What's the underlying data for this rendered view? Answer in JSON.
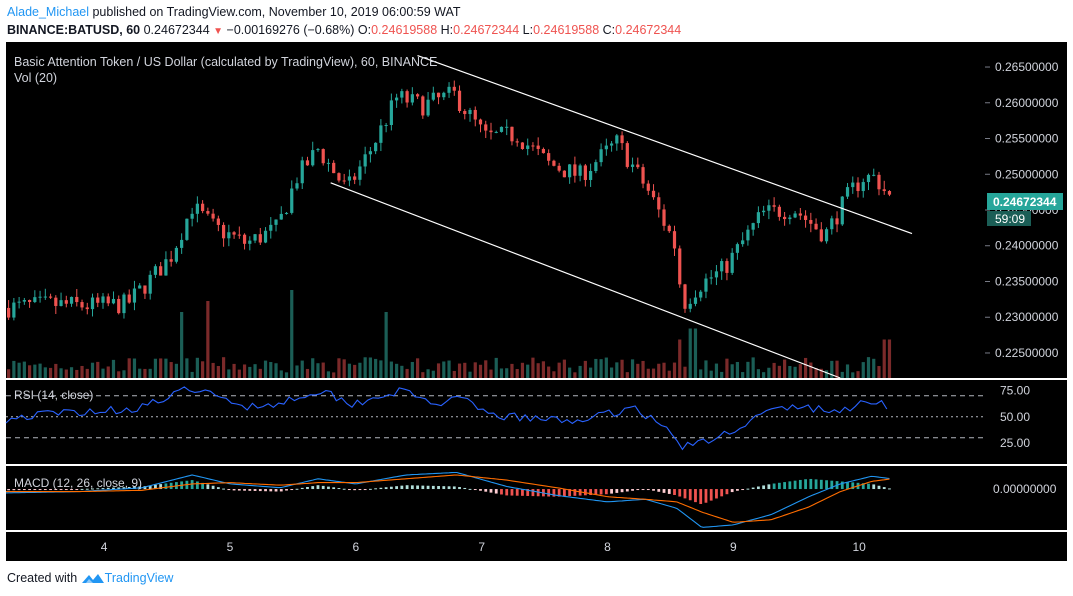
{
  "header": {
    "author": "Alade_Michael",
    "published_text": "published on TradingView.com, November 10, 2019 06:00:59 WAT",
    "symbol_line_prefix": "BINANCE:BATUSD, 60",
    "price": "0.24672344",
    "change": "−0.00169276 (−0.68%)",
    "o_label": "O:",
    "o_value": "0.24619588",
    "h_label": "H:",
    "h_value": "0.24672344",
    "l_label": "L:",
    "l_value": "0.24619588",
    "c_label": "C:",
    "c_value": "0.24672344"
  },
  "main_panel": {
    "title": "Basic Attention Token / US Dollar (calculated by TradingView), 60, BINANCE",
    "vol_label": "Vol (20)",
    "last_price_label": "0.24672344",
    "countdown_label": "59:09"
  },
  "rsi_panel": {
    "label": "RSI (14, close)"
  },
  "macd_panel": {
    "label": "MACD (12, 26, close, 9)"
  },
  "footer": {
    "created_with": "Created with",
    "brand": "TradingView"
  },
  "colors": {
    "background": "#000000",
    "up": "#26a69a",
    "down": "#ef5350",
    "vol_up": "#1b5e56",
    "vol_down": "#7b2a2a",
    "rsi_line": "#2962ff",
    "macd_line": "#2196f3",
    "signal_line": "#ff6d00",
    "channel": "#ffffff"
  },
  "chart_data": [
    {
      "type": "candlestick",
      "title": "Basic Attention Token / US Dollar (calculated by TradingView), 60, BINANCE",
      "x_tick_labels": [
        "4",
        "5",
        "6",
        "7",
        "8",
        "9",
        "10"
      ],
      "x_tick_days": [
        4,
        5,
        6,
        7,
        8,
        9,
        10
      ],
      "x_range_days": [
        3.22,
        11.0
      ],
      "y_tick_labels": [
        "0.22500000",
        "0.23000000",
        "0.23500000",
        "0.24000000",
        "0.24500000",
        "0.25000000",
        "0.25500000",
        "0.26000000",
        "0.26500000"
      ],
      "y_ticks": [
        0.225,
        0.23,
        0.235,
        0.24,
        0.245,
        0.25,
        0.255,
        0.26,
        0.265
      ],
      "ylim": [
        0.2215,
        0.2685
      ],
      "last_price": 0.24672344,
      "price_path": [
        [
          3.22,
          0.2313
        ],
        [
          3.6,
          0.2318
        ],
        [
          3.9,
          0.2316
        ],
        [
          4.2,
          0.2318
        ],
        [
          4.4,
          0.2355
        ],
        [
          4.55,
          0.2385
        ],
        [
          4.72,
          0.2455
        ],
        [
          4.9,
          0.2425
        ],
        [
          5.15,
          0.2403
        ],
        [
          5.4,
          0.2425
        ],
        [
          5.55,
          0.2495
        ],
        [
          5.72,
          0.2535
        ],
        [
          5.95,
          0.2478
        ],
        [
          6.15,
          0.2538
        ],
        [
          6.35,
          0.2608
        ],
        [
          6.55,
          0.2596
        ],
        [
          6.8,
          0.2612
        ],
        [
          7.05,
          0.2552
        ],
        [
          7.3,
          0.2555
        ],
        [
          7.55,
          0.2515
        ],
        [
          7.8,
          0.2498
        ],
        [
          8.1,
          0.2545
        ],
        [
          8.35,
          0.2475
        ],
        [
          8.55,
          0.2405
        ],
        [
          8.62,
          0.2318
        ],
        [
          8.75,
          0.2345
        ],
        [
          8.95,
          0.2368
        ],
        [
          9.25,
          0.2445
        ],
        [
          9.5,
          0.2452
        ],
        [
          9.75,
          0.2415
        ],
        [
          9.95,
          0.2475
        ],
        [
          10.05,
          0.2495
        ],
        [
          10.15,
          0.2496
        ],
        [
          10.26,
          0.2467
        ]
      ],
      "volume_spikes": [
        {
          "day": 4.63,
          "level": 0.6,
          "dir": "up"
        },
        {
          "day": 4.83,
          "level": 0.7,
          "dir": "down"
        },
        {
          "day": 5.49,
          "level": 0.8,
          "dir": "up"
        },
        {
          "day": 6.23,
          "level": 0.6,
          "dir": "down"
        },
        {
          "day": 8.57,
          "level": 0.35,
          "dir": "down"
        },
        {
          "day": 8.68,
          "level": 0.45,
          "dir": "up"
        },
        {
          "day": 10.22,
          "level": 0.35,
          "dir": "down"
        }
      ],
      "channel_upper": [
        [
          6.49,
          0.2666
        ],
        [
          10.42,
          0.2417
        ]
      ],
      "channel_lower": [
        [
          5.8,
          0.2488
        ],
        [
          9.85,
          0.2215
        ]
      ]
    },
    {
      "type": "line",
      "name": "RSI (14, close)",
      "y_tick_labels": [
        "25.00",
        "50.00",
        "75.00"
      ],
      "y_ticks": [
        25,
        50,
        75
      ],
      "bands": [
        30,
        50,
        70
      ],
      "ylim": [
        5,
        85
      ],
      "series": [
        {
          "values": [
            [
              3.22,
              48
            ],
            [
              3.5,
              52
            ],
            [
              3.8,
              55
            ],
            [
              4.2,
              57
            ],
            [
              4.5,
              67
            ],
            [
              4.7,
              78
            ],
            [
              4.9,
              68
            ],
            [
              5.15,
              60
            ],
            [
              5.4,
              63
            ],
            [
              5.6,
              72
            ],
            [
              5.75,
              75
            ],
            [
              5.95,
              62
            ],
            [
              6.2,
              70
            ],
            [
              6.35,
              75
            ],
            [
              6.6,
              63
            ],
            [
              6.85,
              66
            ],
            [
              7.05,
              52
            ],
            [
              7.4,
              48
            ],
            [
              7.7,
              46
            ],
            [
              8.0,
              52
            ],
            [
              8.2,
              60
            ],
            [
              8.45,
              40
            ],
            [
              8.6,
              22
            ],
            [
              8.8,
              26
            ],
            [
              9.0,
              38
            ],
            [
              9.3,
              56
            ],
            [
              9.55,
              60
            ],
            [
              9.8,
              54
            ],
            [
              10.0,
              62
            ],
            [
              10.12,
              66
            ],
            [
              10.2,
              63
            ],
            [
              10.26,
              58
            ]
          ]
        }
      ]
    },
    {
      "type": "line",
      "name": "MACD (12, 26, close, 9)",
      "y_tick_labels": [
        "0.00000000"
      ],
      "y_ticks": [
        0
      ],
      "ylim": [
        -0.0032,
        0.0018
      ],
      "series": [
        {
          "name": "MACD",
          "values": [
            [
              3.22,
              -0.0003
            ],
            [
              3.8,
              -0.0002
            ],
            [
              4.3,
              0.0001
            ],
            [
              4.7,
              0.0011
            ],
            [
              5.0,
              0.0004
            ],
            [
              5.4,
              0.0001
            ],
            [
              5.7,
              0.0008
            ],
            [
              6.0,
              0.0004
            ],
            [
              6.4,
              0.0011
            ],
            [
              6.8,
              0.0013
            ],
            [
              7.2,
              0.0002
            ],
            [
              7.6,
              -0.0005
            ],
            [
              8.0,
              -0.001
            ],
            [
              8.3,
              -0.0008
            ],
            [
              8.55,
              -0.0015
            ],
            [
              8.75,
              -0.003
            ],
            [
              9.0,
              -0.0028
            ],
            [
              9.3,
              -0.002
            ],
            [
              9.6,
              -0.0006
            ],
            [
              9.85,
              0.0004
            ],
            [
              10.1,
              0.001
            ],
            [
              10.26,
              0.0008
            ]
          ]
        },
        {
          "name": "Signal",
          "values": [
            [
              3.22,
              -0.0002
            ],
            [
              3.8,
              -0.0002
            ],
            [
              4.3,
              -0.0001
            ],
            [
              4.7,
              0.0004
            ],
            [
              5.0,
              0.0005
            ],
            [
              5.4,
              0.0003
            ],
            [
              5.7,
              0.0005
            ],
            [
              6.0,
              0.0005
            ],
            [
              6.4,
              0.0008
            ],
            [
              6.8,
              0.0011
            ],
            [
              7.2,
              0.0007
            ],
            [
              7.6,
              0.0001
            ],
            [
              8.0,
              -0.0006
            ],
            [
              8.3,
              -0.0008
            ],
            [
              8.55,
              -0.001
            ],
            [
              8.75,
              -0.0018
            ],
            [
              9.0,
              -0.0026
            ],
            [
              9.3,
              -0.0024
            ],
            [
              9.6,
              -0.0014
            ],
            [
              9.85,
              -0.0002
            ],
            [
              10.1,
              0.0006
            ],
            [
              10.26,
              0.0008
            ]
          ]
        }
      ]
    }
  ]
}
